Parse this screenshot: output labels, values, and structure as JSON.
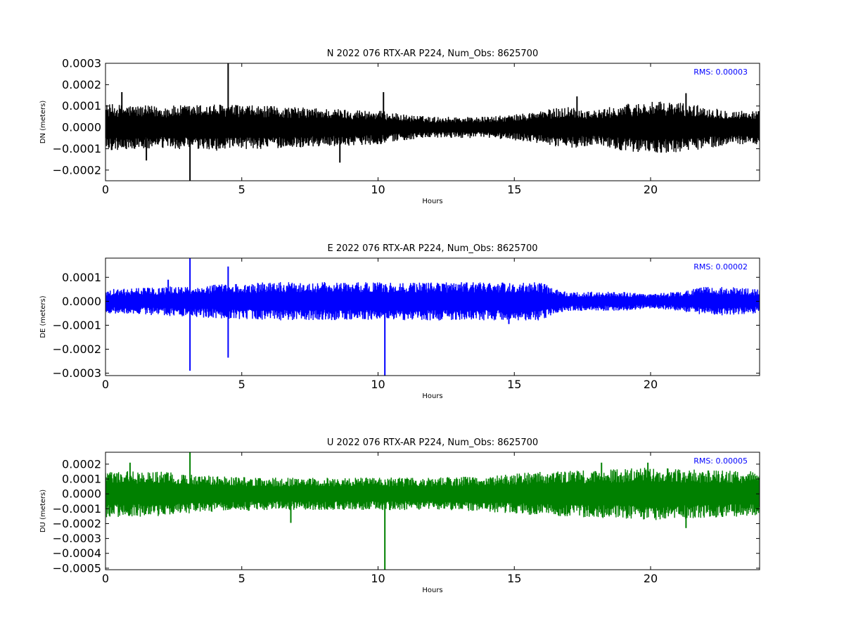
{
  "chart_data": [
    {
      "type": "line",
      "title": "N 2022 076 RTX-AR  P224, Num_Obs: 8625700",
      "xlabel": "Hours",
      "ylabel": "DN (meters)",
      "xlim": [
        0,
        24
      ],
      "ylim": [
        -0.00025,
        0.0003
      ],
      "xticks": [
        0,
        5,
        10,
        15,
        20
      ],
      "xtick_labels": [
        "0",
        "5",
        "10",
        "15",
        "20"
      ],
      "yticks": [
        -0.0002,
        -0.0001,
        0.0,
        0.0001,
        0.0002,
        0.0003
      ],
      "ytick_labels": [
        "−0.0002",
        "−0.0001",
        "0.0000",
        "0.0001",
        "0.0002",
        "0.0003"
      ],
      "annotation": "RMS:  0.00003",
      "annotation_color": "#0000ff",
      "line_color": "#000000",
      "grid": false,
      "envelope": {
        "hours": [
          0,
          2,
          4,
          6,
          8,
          10,
          11,
          12,
          14,
          15,
          16,
          17,
          18,
          19,
          20,
          21,
          22,
          23,
          24
        ],
        "amplitude": [
          0.00011,
          0.0001,
          0.00011,
          0.0001,
          9e-05,
          8e-05,
          6e-05,
          5e-05,
          5e-05,
          6e-05,
          8e-05,
          0.0001,
          8e-05,
          0.00011,
          0.00012,
          0.00012,
          0.0001,
          8e-05,
          8e-05
        ]
      },
      "spikes": [
        {
          "x": 3.1,
          "y": -0.00025
        },
        {
          "x": 4.5,
          "y": 0.0003
        },
        {
          "x": 10.2,
          "y": 0.000165
        },
        {
          "x": 0.6,
          "y": 0.000165
        },
        {
          "x": 1.5,
          "y": -0.000155
        },
        {
          "x": 8.6,
          "y": -0.000165
        },
        {
          "x": 17.3,
          "y": 0.000145
        },
        {
          "x": 21.3,
          "y": 0.00016
        }
      ]
    },
    {
      "type": "line",
      "title": "E 2022 076 RTX-AR  P224, Num_Obs: 8625700",
      "xlabel": "Hours",
      "ylabel": "DE (meters)",
      "xlim": [
        0,
        24
      ],
      "ylim": [
        -0.00031,
        0.00018
      ],
      "xticks": [
        0,
        5,
        10,
        15,
        20
      ],
      "xtick_labels": [
        "0",
        "5",
        "10",
        "15",
        "20"
      ],
      "yticks": [
        -0.0003,
        -0.0002,
        -0.0001,
        0.0,
        0.0001
      ],
      "ytick_labels": [
        "−0.0003",
        "−0.0002",
        "−0.0001",
        "0.0000",
        "0.0001"
      ],
      "annotation": "RMS:  0.00002",
      "annotation_color": "#0000ff",
      "line_color": "#0000ff",
      "grid": false,
      "envelope": {
        "hours": [
          0,
          2,
          4,
          6,
          8,
          10,
          12,
          14,
          16,
          16.5,
          17,
          18,
          19,
          20,
          21,
          22,
          23,
          24
        ],
        "amplitude": [
          5e-05,
          6e-05,
          7e-05,
          8e-05,
          8e-05,
          8e-05,
          8e-05,
          8e-05,
          8e-05,
          5e-05,
          4e-05,
          4e-05,
          4e-05,
          3e-05,
          4e-05,
          6e-05,
          6e-05,
          5e-05
        ]
      },
      "spikes": [
        {
          "x": 3.1,
          "y": 0.00018
        },
        {
          "x": 3.1,
          "y": -0.00029
        },
        {
          "x": 4.5,
          "y": 0.000145
        },
        {
          "x": 4.5,
          "y": -0.000235
        },
        {
          "x": 10.25,
          "y": -0.00031
        },
        {
          "x": 2.3,
          "y": 9e-05
        },
        {
          "x": 14.8,
          "y": -9.5e-05
        }
      ]
    },
    {
      "type": "line",
      "title": "U 2022 076 RTX-AR  P224, Num_Obs: 8625700",
      "xlabel": "Hours",
      "ylabel": "DU (meters)",
      "xlim": [
        0,
        24
      ],
      "ylim": [
        -0.00051,
        0.00028
      ],
      "xticks": [
        0,
        5,
        10,
        15,
        20
      ],
      "xtick_labels": [
        "0",
        "5",
        "10",
        "15",
        "20"
      ],
      "yticks": [
        -0.0005,
        -0.0004,
        -0.0003,
        -0.0002,
        -0.0001,
        0.0,
        0.0001,
        0.0002
      ],
      "ytick_labels": [
        "−0.0005",
        "−0.0004",
        "−0.0003",
        "−0.0002",
        "−0.0001",
        "0.0000",
        "0.0001",
        "0.0002"
      ],
      "annotation": "RMS:  0.00005",
      "annotation_color": "#0000ff",
      "line_color": "#008000",
      "grid": false,
      "envelope": {
        "hours": [
          0,
          2,
          4,
          6,
          8,
          10,
          12,
          14,
          16,
          18,
          20,
          22,
          24
        ],
        "amplitude": [
          0.00016,
          0.00015,
          0.00012,
          0.00011,
          0.00011,
          0.00011,
          0.00011,
          0.00012,
          0.00015,
          0.00016,
          0.00018,
          0.00016,
          0.00015
        ]
      },
      "spikes": [
        {
          "x": 3.1,
          "y": 0.00028
        },
        {
          "x": 10.25,
          "y": -0.00051
        },
        {
          "x": 0.9,
          "y": 0.00021
        },
        {
          "x": 18.2,
          "y": 0.00021
        },
        {
          "x": 19.9,
          "y": 0.00021
        },
        {
          "x": 21.3,
          "y": -0.00023
        },
        {
          "x": 6.8,
          "y": -0.000195
        }
      ]
    }
  ]
}
